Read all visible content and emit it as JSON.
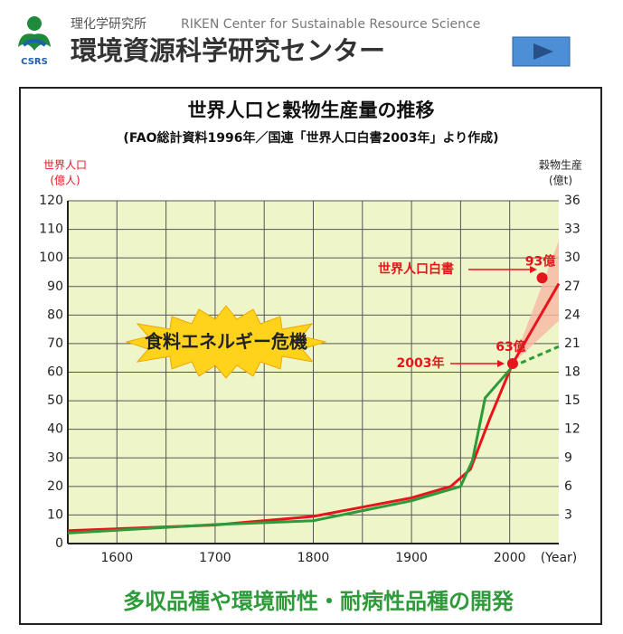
{
  "header": {
    "org": "理化学研究所",
    "org_en": "RIKEN Center for Sustainable Resource Science",
    "title": "環境資源科学研究センター",
    "logo_text": "CSRS"
  },
  "chart_data": {
    "type": "line",
    "title": "世界人口と穀物生産量の推移",
    "subtitle": "(FAO総計資料1996年／国連「世界人口白書2003年」より作成)",
    "y_label": [
      "世界人口",
      "(億人)"
    ],
    "y2_label": [
      "穀物生産",
      "(億t)"
    ],
    "x_label": "(Year)",
    "xlim": [
      1550,
      2050
    ],
    "xticks": [
      1600,
      1700,
      1800,
      1900,
      2000
    ],
    "x_minor_ticks": [
      1650,
      1750,
      1850,
      1950
    ],
    "ylim": [
      0,
      120
    ],
    "yticks": [
      0,
      10,
      20,
      30,
      40,
      50,
      60,
      70,
      80,
      90,
      100,
      110,
      120
    ],
    "y2lim": [
      0,
      36
    ],
    "y2ticks": [
      3,
      6,
      9,
      12,
      15,
      18,
      21,
      24,
      27,
      30,
      33,
      36
    ],
    "grid": true,
    "background": "#eef5c8",
    "series": [
      {
        "name": "世界人口",
        "color": "#e8141c",
        "axis": "y",
        "x": [
          1550,
          1700,
          1800,
          1900,
          1940,
          1960,
          1980,
          2003,
          2050
        ],
        "values": [
          4.5,
          6.5,
          9.5,
          16,
          20,
          26,
          44,
          63,
          91
        ]
      },
      {
        "name": "穀物生産",
        "color": "#2e9a3a",
        "axis": "y2",
        "x": [
          1550,
          1700,
          1800,
          1900,
          1950,
          1962,
          1975,
          2003
        ],
        "values": [
          1.1,
          2,
          2.4,
          4.5,
          6,
          8.7,
          15.3,
          18.6
        ]
      },
      {
        "name": "穀物生産予測",
        "color": "#2e9a3a",
        "axis": "y2",
        "dashed": true,
        "x": [
          2003,
          2030,
          2050
        ],
        "values": [
          18.6,
          19.8,
          20.7
        ]
      }
    ],
    "band": {
      "color": "#f7b6a4",
      "x": [
        2003,
        2050
      ],
      "low": [
        63,
        78
      ],
      "high": [
        63,
        106
      ]
    },
    "points": [
      {
        "x": 2003,
        "value": 63,
        "label": "63億"
      },
      {
        "x": 2033,
        "value": 93,
        "label": "93億"
      }
    ],
    "annotations": [
      "世界人口白書",
      "2003年"
    ],
    "burst": "食料エネルギー危機",
    "footer": "多収品種や環境耐性・耐病性品種の開発"
  }
}
